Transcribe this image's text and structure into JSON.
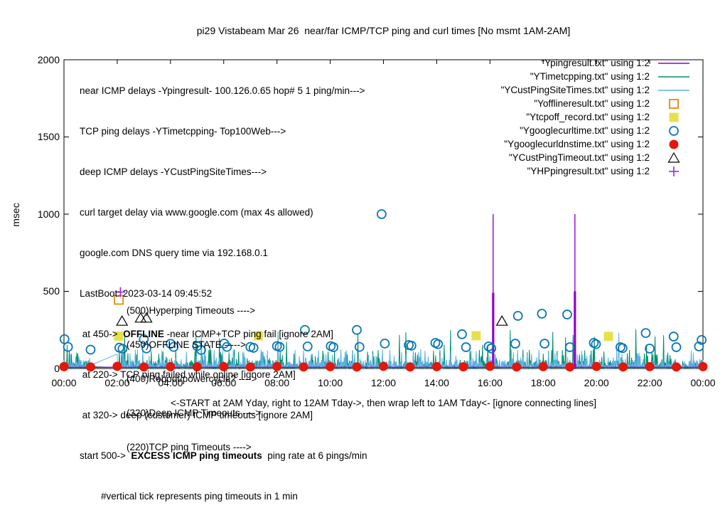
{
  "title": "pi29 Vistabeam Mar 26  near/far ICMP/TCP ping and curl times [No msmt 1AM-2AM]",
  "caption": "<-START at 2AM Yday, right to 12AM Tday->, then wrap left to 1AM Tday<- [ignore connecting lines]",
  "annotations": {
    "l1": "near ICMP delays -Ypingresult- 100.126.0.65 hop# 5 1 ping/min--->",
    "l2": "TCP ping delays -YTimetcpping- Top100Web--->",
    "l3": "deep ICMP delays -YCustPingSiteTimes--->",
    "l4": "curl target delay via www.google.com (max 4s allowed)",
    "l5": "google.com DNS query time via 192.168.0.1",
    "l6": "LastBoot: 2023-03-14 09:45:52",
    "l7_pre": " at 450->  ",
    "l7_bold": "OFFLINE",
    "l7_post": " -near ICMP+TCP ping fail [ignore 2AM]",
    "l8": " at 220-> TCP ping failed while online [ignore 2AM]",
    "l9": " at 320-> deep (customer) ICMP timeouts [ignore 2AM]",
    "l10_pre": "start 500->  ",
    "l10_bold": "EXCESS ICMP ping timeouts",
    "l10_post": "  ping rate at 6 pings/min",
    "l11": "        #vertical tick represents ping timeouts in 1 min",
    "m1": "(500)Hyperping Timeouts ---->",
    "m2": "(450)OFFLINE STATE ----->",
    "m3": "(400)Reboot/powercycle? ---->",
    "m4": "(320)Deep ICMP Timeouts ---->",
    "m5": "(220)TCP ping Timeouts ---->"
  },
  "legend": {
    "items": [
      {
        "label": "\"Ypingresult.txt\" using 1:2",
        "marker": "line",
        "color": "#9400d3"
      },
      {
        "label": "\"YTimetcpping.txt\" using 1:2",
        "marker": "line",
        "color": "#008f6c"
      },
      {
        "label": "\"YCustPingSiteTimes.txt\" using 1:2",
        "marker": "line",
        "color": "#5ab0e2"
      },
      {
        "label": "\"Yofflineresult.txt\" using 1:2",
        "marker": "open-square",
        "color": "#de8f05"
      },
      {
        "label": "\"Ytcpoff_record.txt\" using 1:2",
        "marker": "filled-square",
        "color": "#e8e04a"
      },
      {
        "label": "\"Ygooglecurltime.txt\" using 1:2",
        "marker": "open-circle",
        "color": "#0b77b5"
      },
      {
        "label": "\"Ygooglecurldnstime.txt\" using 1:2",
        "marker": "filled-circle",
        "color": "#e3170b"
      },
      {
        "label": "\"YCustPingTimeout.txt\" using 1:2",
        "marker": "open-triangle",
        "color": "#000000"
      },
      {
        "label": "\"YHPpingresult.txt\" using 1:2",
        "marker": "plus",
        "color": "#a020f0"
      }
    ]
  },
  "chart_data": {
    "type": "line",
    "title": "pi29 Vistabeam Mar 26  near/far ICMP/TCP ping and curl times [No msmt 1AM-2AM]",
    "ylabel": "msec",
    "grid": false,
    "legend_position": "top-right-inside",
    "x_axis": {
      "unit": "time of day (hours)",
      "range_hours": [
        0,
        24
      ],
      "tick_hours": [
        0,
        2,
        4,
        6,
        8,
        10,
        12,
        14,
        16,
        18,
        20,
        22,
        24
      ],
      "labels": [
        "00:00",
        "02:00",
        "04:00",
        "06:00",
        "08:00",
        "10:00",
        "12:00",
        "14:00",
        "16:00",
        "18:00",
        "20:00",
        "22:00",
        "00:00"
      ]
    },
    "y_axis": {
      "range": [
        0,
        2000
      ],
      "tick_values": [
        0,
        500,
        1000,
        1500,
        2000
      ],
      "labels": [
        "0",
        "500",
        "1000",
        "1500",
        "2000"
      ]
    },
    "series": [
      {
        "name": "\"Ypingresult.txt\" using 1:2",
        "color": "#9400d3",
        "style": "baseline-spikes",
        "baseline_msec": 8,
        "spikes": [
          {
            "hour": 16.12,
            "peak_msec": 1000,
            "solid_to_msec": 490
          },
          {
            "hour": 19.19,
            "peak_msec": 1000,
            "solid_to_msec": 500
          }
        ]
      },
      {
        "name": "\"YTimetcpping.txt\" using 1:2",
        "color": "#008f6c",
        "style": "noise",
        "range_msec": [
          0,
          265
        ],
        "gap_hours": [
          1,
          2
        ],
        "seed": 11,
        "tall_spike_prob": 0.035,
        "mid_spike_prob": 0.22
      },
      {
        "name": "\"YCustPingSiteTimes.txt\" using 1:2",
        "color": "#5ab0e2",
        "style": "noise",
        "range_msec": [
          0,
          260
        ],
        "gap_hours": [
          1,
          2
        ],
        "seed": 29,
        "tall_spike_prob": 0.012,
        "mid_spike_prob": 0.3
      },
      {
        "name": "\"Yofflineresult.txt\" using 1:2",
        "color": "#de8f05",
        "style": "points",
        "marker": "open-square",
        "points": [
          [
            2.06,
            445
          ]
        ]
      },
      {
        "name": "\"Ytcpoff_record.txt\" using 1:2",
        "color": "#e8e04a",
        "style": "points",
        "marker": "filled-square",
        "points": [
          [
            2.05,
            210
          ],
          [
            7.3,
            212
          ],
          [
            15.48,
            212
          ],
          [
            20.45,
            208
          ]
        ]
      },
      {
        "name": "\"Ygooglecurltime.txt\" using 1:2",
        "color": "#0b77b5",
        "style": "points",
        "marker": "open-circle",
        "points": [
          [
            0.02,
            190
          ],
          [
            0.15,
            140
          ],
          [
            1.0,
            122
          ],
          [
            2.08,
            135
          ],
          [
            2.2,
            128
          ],
          [
            3.0,
            190
          ],
          [
            3.1,
            130
          ],
          [
            4.0,
            160
          ],
          [
            4.12,
            140
          ],
          [
            5.0,
            145
          ],
          [
            5.15,
            120
          ],
          [
            6.02,
            162
          ],
          [
            6.12,
            140
          ],
          [
            7.0,
            140
          ],
          [
            7.12,
            134
          ],
          [
            8.0,
            145
          ],
          [
            8.1,
            140
          ],
          [
            9.05,
            250
          ],
          [
            9.15,
            143
          ],
          [
            10.02,
            145
          ],
          [
            10.12,
            138
          ],
          [
            11.0,
            250
          ],
          [
            11.1,
            140
          ],
          [
            11.93,
            1000
          ],
          [
            12.05,
            162
          ],
          [
            12.95,
            152
          ],
          [
            13.05,
            148
          ],
          [
            13.95,
            166
          ],
          [
            14.05,
            158
          ],
          [
            14.95,
            222
          ],
          [
            15.1,
            138
          ],
          [
            15.95,
            143
          ],
          [
            16.05,
            130
          ],
          [
            16.95,
            161
          ],
          [
            17.05,
            341
          ],
          [
            17.95,
            355
          ],
          [
            18.05,
            161
          ],
          [
            18.9,
            350
          ],
          [
            19.0,
            138
          ],
          [
            19.9,
            166
          ],
          [
            19.98,
            158
          ],
          [
            20.9,
            138
          ],
          [
            20.98,
            132
          ],
          [
            21.85,
            230
          ],
          [
            22.0,
            129
          ],
          [
            22.9,
            207
          ],
          [
            23.0,
            138
          ],
          [
            23.85,
            143
          ],
          [
            23.95,
            185
          ]
        ]
      },
      {
        "name": "\"Ygooglecurldnstime.txt\" using 1:2",
        "color": "#e3170b",
        "style": "points",
        "marker": "filled-circle",
        "points": [
          [
            0,
            12
          ],
          [
            1,
            10
          ],
          [
            2,
            14
          ],
          [
            3,
            10
          ],
          [
            4,
            12
          ],
          [
            5,
            11
          ],
          [
            6,
            12
          ],
          [
            7,
            10
          ],
          [
            8,
            13
          ],
          [
            9,
            10
          ],
          [
            10,
            12
          ],
          [
            11,
            10
          ],
          [
            12,
            14
          ],
          [
            13,
            10
          ],
          [
            14,
            12
          ],
          [
            15,
            11
          ],
          [
            16,
            14
          ],
          [
            17,
            10
          ],
          [
            18,
            12
          ],
          [
            19,
            10
          ],
          [
            20,
            13
          ],
          [
            21,
            10
          ],
          [
            22,
            12
          ],
          [
            23,
            10
          ],
          [
            24,
            12
          ]
        ]
      },
      {
        "name": "\"YCustPingTimeout.txt\" using 1:2",
        "color": "#000000",
        "style": "points",
        "marker": "open-triangle",
        "points": [
          [
            2.18,
            308
          ],
          [
            2.88,
            328
          ],
          [
            3.1,
            328
          ],
          [
            16.45,
            308
          ]
        ]
      },
      {
        "name": "\"YHPpingresult.txt\" using 1:2",
        "color": "#a020f0",
        "style": "points",
        "marker": "plus",
        "points": [
          [
            2.12,
            495
          ]
        ]
      }
    ]
  }
}
